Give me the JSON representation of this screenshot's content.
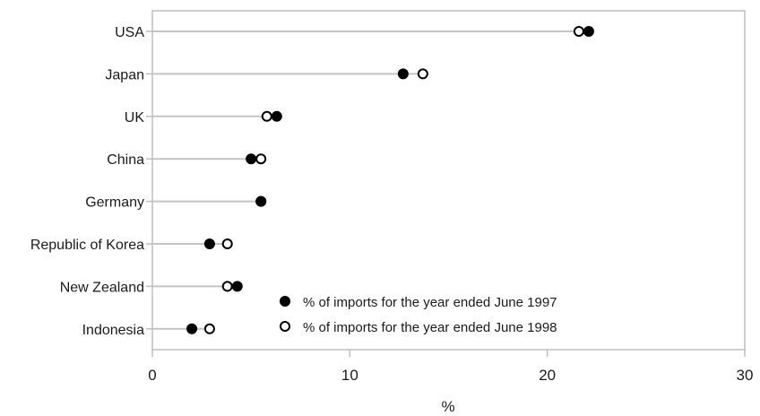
{
  "chart_data": {
    "type": "scatter",
    "categories": [
      "USA",
      "Japan",
      "UK",
      "China",
      "Germany",
      "Republic of Korea",
      "New Zealand",
      "Indonesia"
    ],
    "series": [
      {
        "name": "% of imports for the year ended June 1997",
        "marker": "filled-circle",
        "values": [
          22.1,
          12.7,
          6.3,
          5.0,
          5.5,
          2.9,
          4.3,
          2.0
        ]
      },
      {
        "name": "% of imports for the year ended June 1998",
        "marker": "open-circle",
        "values": [
          21.6,
          13.7,
          5.8,
          5.5,
          5.5,
          3.8,
          3.8,
          2.9
        ]
      }
    ],
    "xlabel": "%",
    "xlim": [
      0,
      30
    ],
    "xticks": [
      "0",
      "10",
      "20",
      "30"
    ],
    "grid": false,
    "legend_position": "bottom-center",
    "colors": {
      "line": "#c4c4c4",
      "frame": "#bdbdbd",
      "marker": "#000000"
    }
  }
}
